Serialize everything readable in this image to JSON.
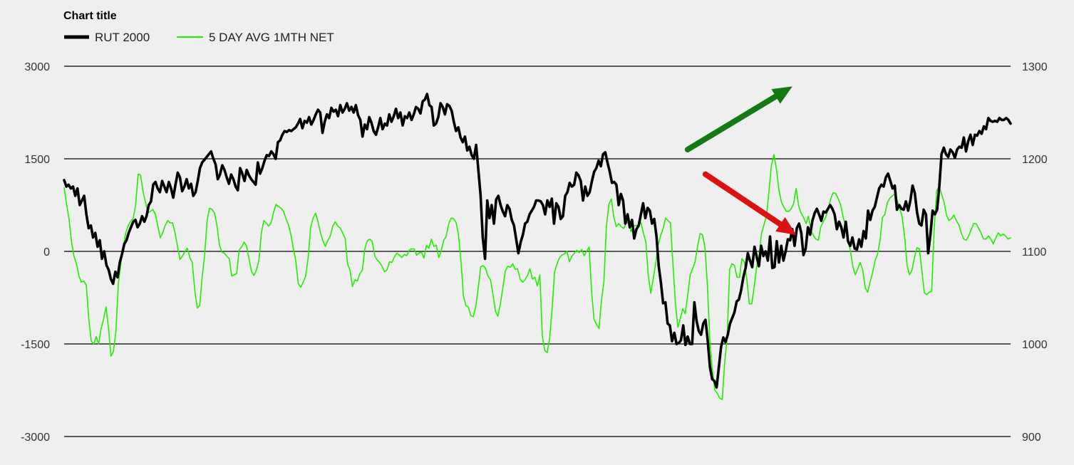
{
  "chart_data": {
    "type": "line",
    "title": "Chart title",
    "colors": {
      "rut": "#000000",
      "net": "#22ee00",
      "up_arrow": "#137a13",
      "down_arrow": "#dd1111",
      "background": "#efefef",
      "grid": "#000000"
    },
    "legend": {
      "placement": "top-left",
      "entries": [
        "RUT 2000",
        "5 DAY AVG 1MTH NET"
      ]
    },
    "grid": true,
    "y_left": {
      "ticks": [
        "3000",
        "1500",
        "0",
        "-1500",
        "-3000"
      ],
      "min": -3000,
      "max": 3000
    },
    "y_right": {
      "ticks": [
        "1300",
        "1200",
        "1100",
        "1000",
        "900"
      ],
      "min": 900,
      "max": 1300
    },
    "annotations": [
      {
        "type": "arrow",
        "name": "up-trend-arrow",
        "series": "RUT 2000",
        "direction": "up",
        "from": [
          280,
          1210
        ],
        "to": [
          320,
          1268
        ]
      },
      {
        "type": "arrow",
        "name": "down-trend-arrow",
        "series": "5 DAY AVG 1MTH NET",
        "direction": "down",
        "from": [
          288,
          1250
        ],
        "to": [
          322,
          430
        ]
      }
    ],
    "series": [
      {
        "name": "RUT 2000",
        "axis": "right",
        "values": [
          1177,
          1170,
          1172,
          1168,
          1170,
          1160,
          1168,
          1150,
          1155,
          1160,
          1140,
          1125,
          1128,
          1115,
          1120,
          1105,
          1112,
          1092,
          1100,
          1085,
          1080,
          1070,
          1065,
          1078,
          1072,
          1088,
          1097,
          1108,
          1112,
          1120,
          1126,
          1132,
          1134,
          1126,
          1130,
          1138,
          1132,
          1138,
          1150,
          1154,
          1172,
          1175,
          1168,
          1164,
          1176,
          1170,
          1164,
          1175,
          1168,
          1158,
          1172,
          1185,
          1180,
          1165,
          1170,
          1178,
          1168,
          1173,
          1160,
          1164,
          1176,
          1190,
          1196,
          1199,
          1202,
          1205,
          1208,
          1200,
          1194,
          1178,
          1183,
          1193,
          1188,
          1180,
          1173,
          1183,
          1178,
          1170,
          1166,
          1190,
          1184,
          1176,
          1188,
          1182,
          1178,
          1175,
          1172,
          1196,
          1184,
          1190,
          1198,
          1204,
          1203,
          1208,
          1205,
          1200,
          1218,
          1220,
          1226,
          1230,
          1229,
          1231,
          1230,
          1232,
          1234,
          1238,
          1243,
          1233,
          1241,
          1239,
          1245,
          1237,
          1242,
          1248,
          1253,
          1250,
          1228,
          1240,
          1248,
          1244,
          1255,
          1251,
          1253,
          1246,
          1258,
          1250,
          1254,
          1260,
          1252,
          1256,
          1250,
          1258,
          1247,
          1242,
          1224,
          1237,
          1232,
          1245,
          1239,
          1230,
          1226,
          1234,
          1244,
          1232,
          1238,
          1236,
          1248,
          1240,
          1246,
          1254,
          1244,
          1250,
          1236,
          1246,
          1244,
          1250,
          1242,
          1248,
          1256,
          1254,
          1249,
          1262,
          1264,
          1270,
          1258,
          1256,
          1236,
          1238,
          1245,
          1260,
          1256,
          1248,
          1259,
          1257,
          1252,
          1240,
          1230,
          1234,
          1223,
          1218,
          1224,
          1209,
          1213,
          1204,
          1200,
          1215,
          1188,
          1161,
          1115,
          1092,
          1155,
          1136,
          1150,
          1130,
          1156,
          1160,
          1150,
          1143,
          1138,
          1150,
          1146,
          1134,
          1128,
          1113,
          1098,
          1110,
          1118,
          1130,
          1132,
          1140,
          1144,
          1148,
          1155,
          1155,
          1154,
          1150,
          1140,
          1155,
          1148,
          1157,
          1130,
          1152,
          1148,
          1135,
          1138,
          1160,
          1164,
          1174,
          1170,
          1172,
          1185,
          1182,
          1176,
          1155,
          1170,
          1160,
          1164,
          1176,
          1186,
          1190,
          1198,
          1192,
          1205,
          1207,
          1196,
          1186,
          1174,
          1175,
          1172,
          1150,
          1162,
          1155,
          1130,
          1140,
          1126,
          1134,
          1114,
          1124,
          1128,
          1140,
          1152,
          1136,
          1147,
          1144,
          1130,
          1135,
          1116,
          1084,
          1066,
          1044,
          1045,
          1022,
          1020,
          1003,
          1012,
          1000,
          1001,
          1004,
          1020,
          999,
          1008,
          1000,
          1000,
          1045,
          1025,
          1014,
          1010,
          1022,
          1026,
          1004,
          975,
          962,
          960,
          953,
          975,
          997,
          1007,
          1002,
          1010,
          1022,
          1028,
          1034,
          1046,
          1048,
          1058,
          1072,
          1082,
          1098,
          1090,
          1083,
          1105,
          1094,
          1084,
          1106,
          1095,
          1100,
          1090,
          1116,
          1082,
          1083,
          1111,
          1088,
          1106,
          1090,
          1100,
          1113,
          1112,
          1124,
          1106,
          1125,
          1130,
          1120,
          1096,
          1103,
          1126,
          1118,
          1133,
          1141,
          1146,
          1140,
          1133,
          1143,
          1142,
          1146,
          1150,
          1146,
          1140,
          1124,
          1132,
          1126,
          1115,
          1132,
          1111,
          1106,
          1115,
          1103,
          1102,
          1113,
          1105,
          1122,
          1114,
          1144,
          1134,
          1144,
          1148,
          1158,
          1168,
          1172,
          1170,
          1180,
          1184,
          1176,
          1168,
          1171,
          1145,
          1150,
          1146,
          1145,
          1154,
          1144,
          1155,
          1171,
          1163,
          1142,
          1130,
          1128,
          1145,
          1140,
          1098,
          1118,
          1144,
          1140,
          1145,
          1170,
          1205,
          1212,
          1205,
          1202,
          1210,
          1207,
          1201,
          1210,
          1213,
          1212,
          1223,
          1208,
          1219,
          1226,
          1215,
          1226,
          1225,
          1230,
          1227,
          1235,
          1232,
          1244,
          1241,
          1240,
          1241,
          1240,
          1244,
          1242,
          1242,
          1244,
          1242,
          1238
        ]
      },
      {
        "name": "5 DAY AVG 1MTH NET",
        "axis": "left",
        "values": [
          1030,
          760,
          520,
          150,
          -80,
          -200,
          -400,
          -500,
          -480,
          -550,
          -1100,
          -1450,
          -1500,
          -1380,
          -1500,
          -1250,
          -1100,
          -900,
          -1250,
          -1700,
          -1620,
          -1300,
          -520,
          -200,
          80,
          300,
          420,
          490,
          530,
          750,
          1250,
          1240,
          970,
          800,
          620,
          650,
          680,
          600,
          410,
          220,
          300,
          420,
          500,
          460,
          460,
          300,
          80,
          -130,
          -80,
          0,
          50,
          -100,
          -180,
          -630,
          -920,
          -880,
          -410,
          -70,
          500,
          700,
          680,
          620,
          420,
          100,
          -10,
          -30,
          -80,
          -120,
          -400,
          -380,
          -360,
          20,
          70,
          150,
          90,
          -120,
          -320,
          -390,
          -300,
          -150,
          290,
          500,
          460,
          410,
          470,
          640,
          760,
          720,
          700,
          650,
          530,
          430,
          270,
          50,
          -160,
          -520,
          -580,
          -500,
          -400,
          -100,
          380,
          540,
          620,
          480,
          300,
          170,
          80,
          180,
          250,
          410,
          480,
          410,
          380,
          300,
          210,
          -200,
          -310,
          -570,
          -460,
          -480,
          -360,
          -300,
          40,
          170,
          200,
          160,
          -70,
          -140,
          -180,
          -240,
          -330,
          -300,
          -170,
          -180,
          -90,
          -30,
          -60,
          -100,
          -50,
          -70,
          20,
          40,
          40,
          -60,
          -30,
          -10,
          -110,
          100,
          50,
          200,
          80,
          100,
          -100,
          10,
          180,
          240,
          440,
          540,
          530,
          470,
          270,
          -160,
          -720,
          -880,
          -900,
          -1040,
          -1060,
          -900,
          -600,
          -250,
          -230,
          -280,
          -400,
          -460,
          -700,
          -970,
          -1050,
          -850,
          -590,
          -320,
          -240,
          -260,
          -200,
          -290,
          -280,
          -450,
          -500,
          -460,
          -390,
          -280,
          -450,
          -420,
          -560,
          -380,
          -1360,
          -1610,
          -1640,
          -1400,
          -920,
          -330,
          -200,
          -100,
          -60,
          -40,
          0,
          -170,
          -80,
          -30,
          20,
          -20,
          30,
          -70,
          0,
          70,
          -650,
          -1100,
          -1180,
          -1250,
          -800,
          -490,
          400,
          760,
          850,
          560,
          400,
          450,
          400,
          370,
          450,
          480,
          320,
          410,
          420,
          420,
          470,
          300,
          150,
          -380,
          -680,
          -450,
          -200,
          100,
          250,
          370,
          540,
          500,
          460,
          -200,
          -840,
          -1230,
          -1090,
          -930,
          -1010,
          -710,
          -380,
          -280,
          -170,
          80,
          290,
          270,
          60,
          -540,
          -1470,
          -1920,
          -2250,
          -2300,
          -2380,
          -2400,
          -1810,
          -1400,
          -290,
          -200,
          -230,
          -420,
          -420,
          -120,
          -170,
          -460,
          -850,
          -850,
          -570,
          -250,
          -40,
          300,
          440,
          580,
          990,
          1400,
          1570,
          1330,
          1000,
          800,
          720,
          650,
          650,
          690,
          780,
          1020,
          740,
          620,
          550,
          450,
          570,
          340,
          260,
          200,
          180,
          400,
          480,
          550,
          680,
          850,
          950,
          940,
          860,
          760,
          570,
          410,
          170,
          20,
          -250,
          -380,
          -280,
          -180,
          -300,
          -590,
          -660,
          -500,
          -350,
          -150,
          -50,
          170,
          550,
          600,
          790,
          860,
          900,
          930,
          830,
          700,
          560,
          240,
          -230,
          -380,
          -300,
          -100,
          60,
          40,
          -310,
          -670,
          -700,
          -660,
          -650,
          360,
          980,
          1050,
          930,
          800,
          590,
          500,
          530,
          590,
          500,
          430,
          300,
          200,
          180,
          250,
          350,
          450,
          450,
          380,
          300,
          200,
          200,
          250,
          200,
          120,
          220,
          300,
          250,
          280,
          250,
          200,
          220
        ]
      }
    ]
  }
}
